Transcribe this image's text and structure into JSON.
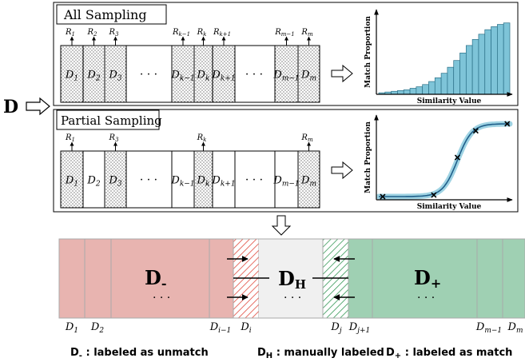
{
  "source_label": "D",
  "top": {
    "title": "All Sampling",
    "blocks": [
      {
        "label": "D",
        "sub": "1",
        "rlabel": "R",
        "rsub": "1"
      },
      {
        "label": "D",
        "sub": "2",
        "rlabel": "R",
        "rsub": "2"
      },
      {
        "label": "D",
        "sub": "3",
        "rlabel": "R",
        "rsub": "3"
      },
      {
        "label": "D",
        "sub": "k−1",
        "rlabel": "R",
        "rsub": "k−1"
      },
      {
        "label": "D",
        "sub": "k",
        "rlabel": "R",
        "rsub": "k"
      },
      {
        "label": "D",
        "sub": "k+1",
        "rlabel": "R",
        "rsub": "k+1"
      },
      {
        "label": "D",
        "sub": "m−1",
        "rlabel": "R",
        "rsub": "m−1"
      },
      {
        "label": "D",
        "sub": "m",
        "rlabel": "R",
        "rsub": "m"
      }
    ],
    "ellipsis": "· · ·",
    "chart": {
      "type": "bar",
      "xlabel": "Similarity Value",
      "ylabel": "Match Proportion",
      "values": [
        0.02,
        0.03,
        0.04,
        0.05,
        0.06,
        0.08,
        0.1,
        0.13,
        0.17,
        0.22,
        0.28,
        0.36,
        0.45,
        0.55,
        0.65,
        0.73,
        0.8,
        0.86,
        0.9,
        0.93,
        0.95
      ]
    }
  },
  "middle": {
    "title": "Partial Sampling",
    "blocks": [
      {
        "label": "D",
        "sub": "1",
        "rlabel": "R",
        "rsub": "1",
        "sampled": true
      },
      {
        "label": "D",
        "sub": "2",
        "sampled": false
      },
      {
        "label": "D",
        "sub": "3",
        "rlabel": "R",
        "rsub": "3",
        "sampled": true
      },
      {
        "label": "D",
        "sub": "k−1",
        "sampled": false
      },
      {
        "label": "D",
        "sub": "k",
        "rlabel": "R",
        "rsub": "k",
        "sampled": true
      },
      {
        "label": "D",
        "sub": "k+1",
        "sampled": false
      },
      {
        "label": "D",
        "sub": "m−1",
        "sampled": false
      },
      {
        "label": "D",
        "sub": "m",
        "rlabel": "R",
        "rsub": "m",
        "sampled": true
      }
    ],
    "ellipsis": "· · ·",
    "chart": {
      "type": "line",
      "xlabel": "Similarity Value",
      "ylabel": "Match Proportion",
      "points": [
        [
          0.03,
          0.02
        ],
        [
          0.42,
          0.04
        ],
        [
          0.6,
          0.52
        ],
        [
          0.74,
          0.86
        ],
        [
          0.98,
          0.95
        ]
      ]
    }
  },
  "bottom": {
    "d_minus": {
      "main": "D",
      "sub": "-"
    },
    "d_h": {
      "main": "D",
      "sub": "H"
    },
    "d_plus": {
      "main": "D",
      "sub": "+"
    },
    "ellipsis": "· · ·",
    "axis_labels": [
      {
        "main": "D",
        "sub": "1"
      },
      {
        "main": "D",
        "sub": "2"
      },
      {
        "main": "D",
        "sub": "i−1"
      },
      {
        "main": "D",
        "sub": "i"
      },
      {
        "main": "D",
        "sub": "j"
      },
      {
        "main": "D",
        "sub": "j+1"
      },
      {
        "main": "D",
        "sub": "m−1"
      },
      {
        "main": "D",
        "sub": "m"
      }
    ],
    "colors": {
      "unmatch": "#e8b4b0",
      "manual": "#f0f0f0",
      "match": "#9fd0b3",
      "unmatch_hatch": "#e0473a",
      "match_hatch": "#3a9a5a"
    }
  },
  "legend": [
    {
      "main": "D",
      "sub": "-",
      "text": " : labeled as unmatch"
    },
    {
      "main": "D",
      "sub": "H",
      "text": " : manually labeled"
    },
    {
      "main": "D",
      "sub": "+",
      "text": " : labeled as match"
    }
  ]
}
